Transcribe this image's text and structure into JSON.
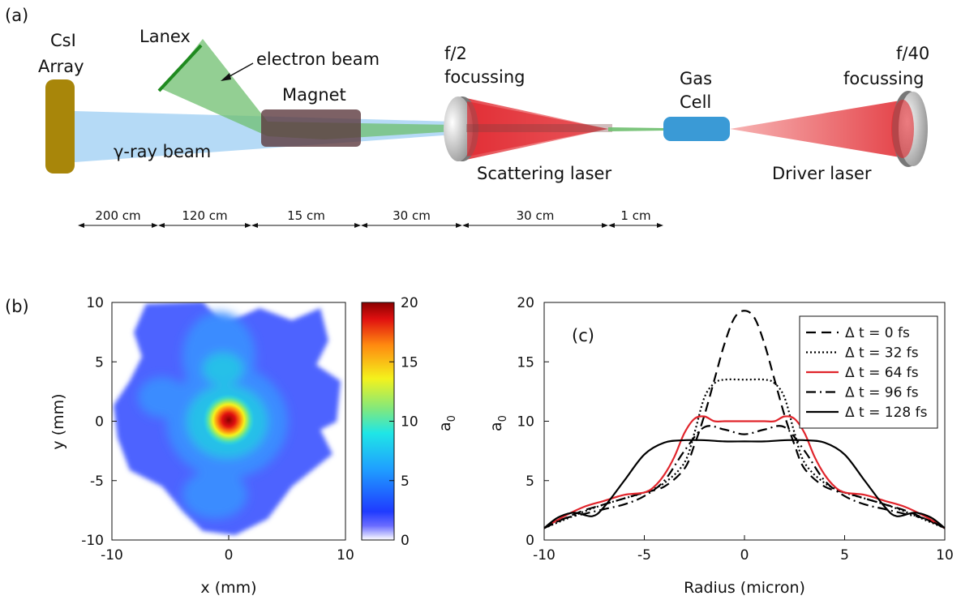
{
  "panels": {
    "a": "(a)",
    "b": "(b)",
    "c": "(c)",
    "c_inner": "(c)"
  },
  "setup": {
    "csi_line1": "CsI",
    "csi_line2": "Array",
    "lanex": "Lanex",
    "electron_beam": "electron beam",
    "magnet": "Magnet",
    "gamma_beam": "γ-ray beam",
    "f2_line1": "f/2",
    "f2_line2": "focussing",
    "gas_line1": "Gas",
    "gas_line2": "Cell",
    "f40_line1": "f/40",
    "f40_line2": "focussing",
    "scattering_laser": "Scattering laser",
    "driver_laser": "Driver laser",
    "distances": [
      "200 cm",
      "120 cm",
      "15 cm",
      "30 cm",
      "30 cm",
      "1 cm"
    ],
    "colors": {
      "csi": "#a8860a",
      "gamma": "#a8d4f5",
      "electron": "#6fbf6f",
      "lanex": "#1f8a1f",
      "magnet": "#5c3a3e",
      "laser": "#e0242b",
      "gas_cell": "#3a9ad6"
    }
  },
  "chart_data": [
    {
      "type": "heatmap",
      "panel": "(b)",
      "xlabel": "x (mm)",
      "ylabel": "y (mm)",
      "xlim": [
        -10,
        10
      ],
      "ylim": [
        -10,
        10
      ],
      "xticks": [
        "-10",
        "0",
        "10"
      ],
      "yticks": [
        "10",
        "5",
        "0",
        "-5",
        "-10"
      ],
      "colorbar": {
        "label": "a",
        "label_sub": "0",
        "range": [
          0,
          20
        ],
        "ticks": [
          "20",
          "15",
          "10",
          "5",
          "0"
        ],
        "colormap": "jet"
      },
      "peak": {
        "x": 0.5,
        "y": 0.1,
        "value": 20
      }
    },
    {
      "type": "line",
      "panel": "(c)",
      "xlabel": "Radius (micron)",
      "ylabel": "a",
      "ylabel_sub": "0",
      "xlim": [
        -10,
        10
      ],
      "ylim": [
        0,
        20
      ],
      "xticks": [
        "-10",
        "-5",
        "0",
        "5",
        "10"
      ],
      "yticks": [
        "20",
        "15",
        "10",
        "5",
        "0"
      ],
      "legend_position": "top-right",
      "series": [
        {
          "name": "Δ t =  0 fs",
          "style": "dashed",
          "color": "#000000",
          "x": [
            -10,
            -9,
            -8,
            -7,
            -6,
            -5,
            -4,
            -3,
            -2.5,
            -2,
            -1.5,
            -1,
            -0.5,
            0,
            0.5,
            1,
            1.5,
            2,
            2.5,
            3,
            4,
            5,
            6,
            7,
            8,
            9,
            10
          ],
          "y": [
            1,
            1.8,
            2.5,
            3,
            3.5,
            4,
            4.5,
            6,
            8,
            10.5,
            13.5,
            16.5,
            18.7,
            19.3,
            18.7,
            16.5,
            13.5,
            10.5,
            8,
            6,
            4.5,
            4,
            3.5,
            3,
            2.5,
            1.8,
            1
          ]
        },
        {
          "name": "Δ t = 32 fs",
          "style": "dotted",
          "color": "#000000",
          "x": [
            -10,
            -9,
            -8,
            -7,
            -6,
            -5,
            -4,
            -3,
            -2.5,
            -2,
            -1.5,
            -1,
            0,
            1,
            1.5,
            2,
            2.5,
            3,
            4,
            5,
            6,
            7,
            8,
            9,
            10
          ],
          "y": [
            1,
            1.7,
            2.4,
            3,
            3.5,
            4,
            4.8,
            6.5,
            9,
            12,
            13.2,
            13.5,
            13.5,
            13.5,
            13.2,
            12,
            9,
            6.5,
            4.8,
            4,
            3.5,
            3,
            2.4,
            1.7,
            1
          ]
        },
        {
          "name": "Δ t = 64 fs",
          "style": "solid",
          "color": "#e0242b",
          "x": [
            -10,
            -9,
            -8,
            -7,
            -6,
            -5,
            -4.5,
            -4,
            -3.5,
            -3,
            -2.5,
            -2,
            -1.5,
            -1,
            0,
            1,
            1.5,
            2,
            2.5,
            3,
            3.5,
            4,
            4.5,
            5,
            6,
            7,
            8,
            9,
            10
          ],
          "y": [
            1,
            2,
            2.8,
            3.3,
            3.8,
            4,
            4.5,
            5.5,
            7,
            9,
            10.2,
            10.4,
            10,
            10,
            10,
            10,
            10,
            10.4,
            10.2,
            9,
            7,
            5.5,
            4.5,
            4,
            3.8,
            3.3,
            2.8,
            2,
            1
          ]
        },
        {
          "name": "Δ t = 96 fs",
          "style": "dashdot",
          "color": "#000000",
          "x": [
            -10,
            -9,
            -8,
            -7,
            -6,
            -5,
            -4,
            -3,
            -2,
            -1,
            0,
            1,
            2,
            3,
            4,
            5,
            6,
            7,
            8,
            9,
            10
          ],
          "y": [
            1,
            1.8,
            2.2,
            2.6,
            3,
            3.7,
            5,
            7.5,
            9.5,
            9.3,
            8.9,
            9.3,
            9.5,
            7.5,
            5,
            3.7,
            3,
            2.6,
            2.2,
            1.8,
            1
          ]
        },
        {
          "name": "Δ t = 128 fs",
          "style": "solid",
          "color": "#000000",
          "x": [
            -10,
            -9.3,
            -8.5,
            -7.6,
            -7,
            -6,
            -5,
            -4,
            -3,
            -2,
            -1,
            0,
            1,
            2,
            3,
            4,
            5,
            6,
            7,
            7.6,
            8.5,
            9.3,
            10
          ],
          "y": [
            1,
            1.9,
            2.3,
            2.0,
            2.8,
            5,
            7.2,
            8.2,
            8.4,
            8.4,
            8.3,
            8.3,
            8.3,
            8.4,
            8.4,
            8.2,
            7.2,
            5,
            2.8,
            2.0,
            2.3,
            1.9,
            1
          ]
        }
      ]
    }
  ]
}
